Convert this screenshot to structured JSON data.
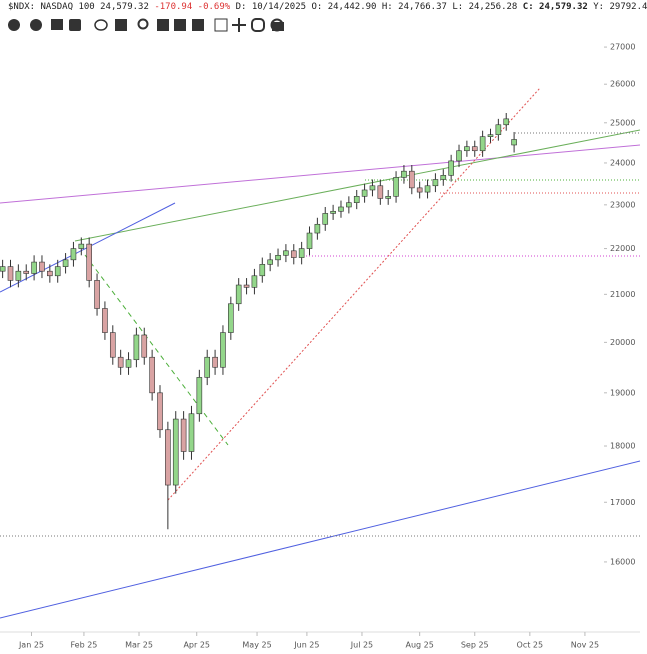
{
  "header": {
    "symbol": "$NDX: NASDAQ 100 24,579.32",
    "change": "-170.94 -0.69%",
    "ohl": "D: 10/14/2025 O: 24,442.90 H: 24,766.37 L: 24,256.28",
    "close": "C: 24,579.32",
    "extra": "Y: 29792.4"
  },
  "chart_data": {
    "type": "candlestick",
    "log": true,
    "up_color": "#93d68a",
    "down_color": "#d9a3a3",
    "edge_color": "#333333",
    "xlim": [
      -12,
      232
    ],
    "ylim": [
      14900,
      27250
    ],
    "xticks": [
      {
        "value": 0,
        "label": "Jan 25"
      },
      {
        "value": 20,
        "label": "Feb 25"
      },
      {
        "value": 41,
        "label": "Mar 25"
      },
      {
        "value": 63,
        "label": "Apr 25"
      },
      {
        "value": 86,
        "label": "May 25"
      },
      {
        "value": 105,
        "label": "Jun 25"
      },
      {
        "value": 126,
        "label": "Jul 25"
      },
      {
        "value": 148,
        "label": "Aug 25"
      },
      {
        "value": 169,
        "label": "Sep 25"
      },
      {
        "value": 190,
        "label": "Oct 25"
      },
      {
        "value": 211,
        "label": "Nov 25"
      }
    ],
    "yticks": [
      16000,
      17000,
      18000,
      19000,
      20000,
      21000,
      22000,
      23000,
      24000,
      25000,
      26000,
      27000
    ],
    "x": [
      -11,
      -8,
      -5,
      -2,
      1,
      4,
      7,
      10,
      13,
      16,
      19,
      22,
      25,
      28,
      31,
      34,
      37,
      40,
      43,
      46,
      49,
      52,
      55,
      58,
      61,
      64,
      67,
      70,
      73,
      76,
      79,
      82,
      85,
      88,
      91,
      94,
      97,
      100,
      103,
      106,
      109,
      112,
      115,
      118,
      121,
      124,
      127,
      130,
      133,
      136,
      139,
      142,
      145,
      148,
      151,
      154,
      157,
      160,
      163,
      166,
      169,
      172,
      175,
      178,
      181,
      184
    ],
    "open": [
      21500,
      21600,
      21300,
      21500,
      21450,
      21700,
      21500,
      21400,
      21600,
      21750,
      22000,
      22100,
      21300,
      20700,
      20200,
      19700,
      19500,
      19650,
      20150,
      19700,
      19000,
      18300,
      17300,
      18500,
      17900,
      18600,
      19300,
      19700,
      19500,
      20200,
      20800,
      21200,
      21150,
      21400,
      21650,
      21750,
      21850,
      21950,
      21800,
      22000,
      22350,
      22550,
      22800,
      22850,
      22950,
      23050,
      23200,
      23350,
      23450,
      23150,
      23200,
      23650,
      23800,
      23400,
      23300,
      23450,
      23600,
      23700,
      24050,
      24300,
      24400,
      24300,
      24650,
      24700,
      24950,
      24442.9
    ],
    "high": [
      21750,
      21750,
      21650,
      21650,
      21850,
      21850,
      21650,
      21750,
      21900,
      22150,
      22250,
      22250,
      21450,
      20850,
      20350,
      19850,
      19800,
      20300,
      20300,
      19850,
      19150,
      18450,
      18650,
      18650,
      18750,
      19450,
      19850,
      19850,
      20350,
      20950,
      21350,
      21350,
      21550,
      21800,
      21900,
      22000,
      22100,
      22100,
      22150,
      22500,
      22700,
      22950,
      23000,
      23100,
      23200,
      23350,
      23500,
      23600,
      23600,
      23350,
      23800,
      23950,
      23950,
      23550,
      23600,
      23750,
      23850,
      24200,
      24450,
      24550,
      24550,
      24800,
      24850,
      25100,
      25250,
      24766.37
    ],
    "low": [
      21350,
      21150,
      21150,
      21300,
      21300,
      21350,
      21250,
      21250,
      21450,
      21600,
      21850,
      21150,
      20550,
      20050,
      19550,
      19350,
      19350,
      19500,
      19550,
      18850,
      18150,
      16540,
      17150,
      17750,
      17750,
      18450,
      19150,
      19350,
      19350,
      20050,
      20650,
      21000,
      21000,
      21250,
      21500,
      21600,
      21700,
      21650,
      21650,
      21850,
      22200,
      22400,
      22650,
      22700,
      22800,
      22900,
      23050,
      23200,
      23000,
      23000,
      23050,
      23500,
      23250,
      23150,
      23150,
      23300,
      23450,
      23550,
      23900,
      24150,
      24150,
      24150,
      24500,
      24550,
      24800,
      24256.28
    ],
    "close": [
      21600,
      21300,
      21500,
      21450,
      21700,
      21500,
      21400,
      21600,
      21750,
      22000,
      22100,
      21300,
      20700,
      20200,
      19700,
      19500,
      19650,
      20150,
      19700,
      19000,
      18300,
      17300,
      18500,
      17900,
      18600,
      19300,
      19700,
      19500,
      20200,
      20800,
      21200,
      21150,
      21400,
      21650,
      21750,
      21850,
      21950,
      21800,
      22000,
      22350,
      22550,
      22800,
      22850,
      22950,
      23050,
      23200,
      23350,
      23450,
      23150,
      23200,
      23650,
      23800,
      23400,
      23300,
      23450,
      23600,
      23700,
      24050,
      24300,
      24400,
      24300,
      24650,
      24700,
      24950,
      25100,
      24579.32
    ]
  }
}
